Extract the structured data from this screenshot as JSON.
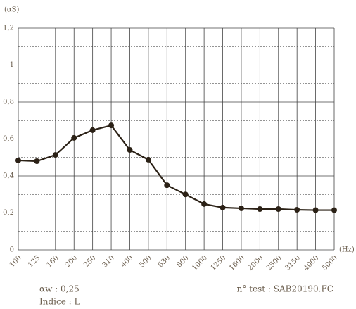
{
  "chart_data": {
    "type": "line",
    "y_label": "(αS)",
    "x_label": "(Hz)",
    "categories": [
      "100",
      "125",
      "160",
      "200",
      "250",
      "310",
      "400",
      "500",
      "630",
      "800",
      "1000",
      "1250",
      "1600",
      "2000",
      "2500",
      "3150",
      "4000",
      "5000"
    ],
    "series": [
      {
        "color": "#2b2116",
        "values": [
          0.484,
          0.48,
          0.514,
          0.606,
          0.648,
          0.674,
          0.541,
          0.488,
          0.35,
          0.3,
          0.248,
          0.229,
          0.225,
          0.221,
          0.221,
          0.217,
          0.215,
          0.215
        ]
      }
    ],
    "ylim": [
      0,
      1.2
    ],
    "yticks": [
      0,
      {
        "value": 0.2,
        "label": "0,2"
      },
      {
        "value": 0.4,
        "label": "0,4"
      },
      {
        "value": 0.6,
        "label": "0,6"
      },
      {
        "value": 0.8,
        "label": "0,8"
      },
      1,
      {
        "value": 1.2,
        "label": "1,2"
      }
    ],
    "yminorticks": [
      0.1,
      0.3,
      0.5,
      0.7,
      0.9,
      1.1
    ],
    "grid": true,
    "annotations": [
      "αw : 0,25",
      "Indice : L",
      "n° test : SAB20190.FC"
    ]
  }
}
